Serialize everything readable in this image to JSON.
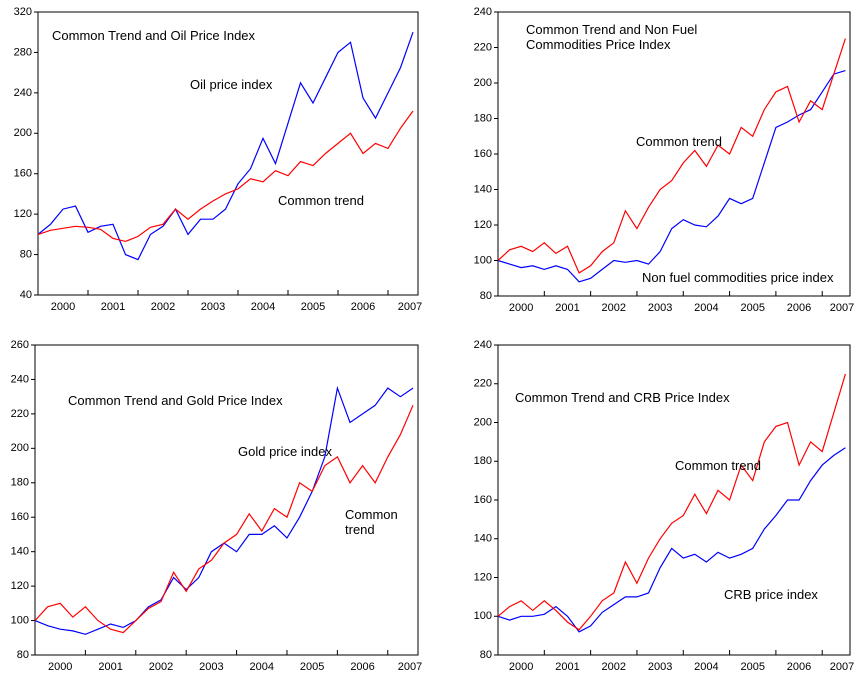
{
  "chart_data": [
    {
      "type": "line",
      "title": "Common Trend and Oil Price Index",
      "x": [
        2000,
        2000.25,
        2000.5,
        2000.75,
        2001,
        2001.25,
        2001.5,
        2001.75,
        2002,
        2002.25,
        2002.5,
        2002.75,
        2003,
        2003.25,
        2003.5,
        2003.75,
        2004,
        2004.25,
        2004.5,
        2004.75,
        2005,
        2005.25,
        2005.5,
        2005.75,
        2006,
        2006.25,
        2006.5,
        2006.75,
        2007,
        2007.25,
        2007.5
      ],
      "series": [
        {
          "name": "Oil price index",
          "color": "#0000ff",
          "values": [
            100,
            110,
            125,
            128,
            102,
            108,
            110,
            80,
            75,
            100,
            108,
            125,
            100,
            115,
            115,
            125,
            150,
            165,
            195,
            170,
            210,
            250,
            230,
            255,
            280,
            290,
            235,
            215,
            240,
            265,
            300
          ]
        },
        {
          "name": "Common trend",
          "color": "#ff0000",
          "values": [
            100,
            104,
            106,
            108,
            107,
            105,
            96,
            93,
            98,
            107,
            110,
            125,
            115,
            125,
            133,
            140,
            145,
            155,
            152,
            163,
            158,
            172,
            168,
            180,
            190,
            200,
            180,
            190,
            185,
            205,
            222
          ]
        }
      ],
      "xlim": [
        2000,
        2007.6
      ],
      "xticks": [
        2000,
        2001,
        2002,
        2003,
        2004,
        2005,
        2006,
        2007
      ],
      "ylim": [
        40,
        320
      ],
      "yticks": [
        40,
        80,
        120,
        160,
        200,
        240,
        280,
        320
      ]
    },
    {
      "type": "line",
      "title": "Common Trend and Non Fuel Commodities Price Index",
      "x": [
        2000,
        2000.25,
        2000.5,
        2000.75,
        2001,
        2001.25,
        2001.5,
        2001.75,
        2002,
        2002.25,
        2002.5,
        2002.75,
        2003,
        2003.25,
        2003.5,
        2003.75,
        2004,
        2004.25,
        2004.5,
        2004.75,
        2005,
        2005.25,
        2005.5,
        2005.75,
        2006,
        2006.25,
        2006.5,
        2006.75,
        2007,
        2007.25,
        2007.5
      ],
      "series": [
        {
          "name": "Non fuel commodities price index",
          "color": "#0000ff",
          "values": [
            100,
            98,
            96,
            97,
            95,
            97,
            95,
            88,
            90,
            95,
            100,
            99,
            100,
            98,
            105,
            118,
            123,
            120,
            119,
            125,
            135,
            132,
            135,
            155,
            175,
            178,
            182,
            185,
            195,
            205,
            207
          ]
        },
        {
          "name": "Common trend",
          "color": "#ff0000",
          "values": [
            100,
            106,
            108,
            105,
            110,
            104,
            108,
            93,
            97,
            105,
            110,
            128,
            118,
            130,
            140,
            145,
            155,
            162,
            153,
            165,
            160,
            175,
            170,
            185,
            195,
            198,
            178,
            190,
            185,
            205,
            225
          ]
        }
      ],
      "xlim": [
        2000,
        2007.6
      ],
      "xticks": [
        2000,
        2001,
        2002,
        2003,
        2004,
        2005,
        2006,
        2007
      ],
      "ylim": [
        80,
        240
      ],
      "yticks": [
        80,
        100,
        120,
        140,
        160,
        180,
        200,
        220,
        240
      ]
    },
    {
      "type": "line",
      "title": "Common Trend and Gold Price Index",
      "x": [
        2000,
        2000.25,
        2000.5,
        2000.75,
        2001,
        2001.25,
        2001.5,
        2001.75,
        2002,
        2002.25,
        2002.5,
        2002.75,
        2003,
        2003.25,
        2003.5,
        2003.75,
        2004,
        2004.25,
        2004.5,
        2004.75,
        2005,
        2005.25,
        2005.5,
        2005.75,
        2006,
        2006.25,
        2006.5,
        2006.75,
        2007,
        2007.25,
        2007.5
      ],
      "series": [
        {
          "name": "Gold price index",
          "color": "#0000ff",
          "values": [
            100,
            97,
            95,
            94,
            92,
            95,
            98,
            96,
            100,
            108,
            112,
            125,
            118,
            125,
            140,
            145,
            140,
            150,
            150,
            155,
            148,
            160,
            175,
            195,
            235,
            215,
            220,
            225,
            235,
            230,
            235
          ]
        },
        {
          "name": "Common trend",
          "color": "#ff0000",
          "values": [
            100,
            108,
            110,
            102,
            108,
            100,
            95,
            93,
            100,
            107,
            111,
            128,
            117,
            130,
            135,
            145,
            150,
            162,
            152,
            165,
            160,
            180,
            175,
            190,
            195,
            180,
            190,
            180,
            195,
            208,
            225
          ]
        }
      ],
      "xlim": [
        2000,
        2007.6
      ],
      "xticks": [
        2000,
        2001,
        2002,
        2003,
        2004,
        2005,
        2006,
        2007
      ],
      "ylim": [
        80,
        260
      ],
      "yticks": [
        80,
        100,
        120,
        140,
        160,
        180,
        200,
        220,
        240,
        260
      ]
    },
    {
      "type": "line",
      "title": "Common Trend and CRB Price Index",
      "x": [
        2000,
        2000.25,
        2000.5,
        2000.75,
        2001,
        2001.25,
        2001.5,
        2001.75,
        2002,
        2002.25,
        2002.5,
        2002.75,
        2003,
        2003.25,
        2003.5,
        2003.75,
        2004,
        2004.25,
        2004.5,
        2004.75,
        2005,
        2005.25,
        2005.5,
        2005.75,
        2006,
        2006.25,
        2006.5,
        2006.75,
        2007,
        2007.25,
        2007.5
      ],
      "series": [
        {
          "name": "CRB price index",
          "color": "#0000ff",
          "values": [
            100,
            98,
            100,
            100,
            101,
            105,
            100,
            92,
            95,
            102,
            106,
            110,
            110,
            112,
            125,
            135,
            130,
            132,
            128,
            133,
            130,
            132,
            135,
            145,
            152,
            160,
            160,
            170,
            178,
            183,
            187
          ]
        },
        {
          "name": "Common trend",
          "color": "#ff0000",
          "values": [
            100,
            105,
            108,
            103,
            108,
            103,
            97,
            93,
            100,
            108,
            112,
            128,
            117,
            130,
            140,
            148,
            152,
            163,
            153,
            165,
            160,
            178,
            170,
            190,
            198,
            200,
            178,
            190,
            185,
            205,
            225
          ]
        }
      ],
      "xlim": [
        2000,
        2007.6
      ],
      "xticks": [
        2000,
        2001,
        2002,
        2003,
        2004,
        2005,
        2006,
        2007
      ],
      "ylim": [
        80,
        240
      ],
      "yticks": [
        80,
        100,
        120,
        140,
        160,
        180,
        200,
        220,
        240
      ]
    }
  ]
}
